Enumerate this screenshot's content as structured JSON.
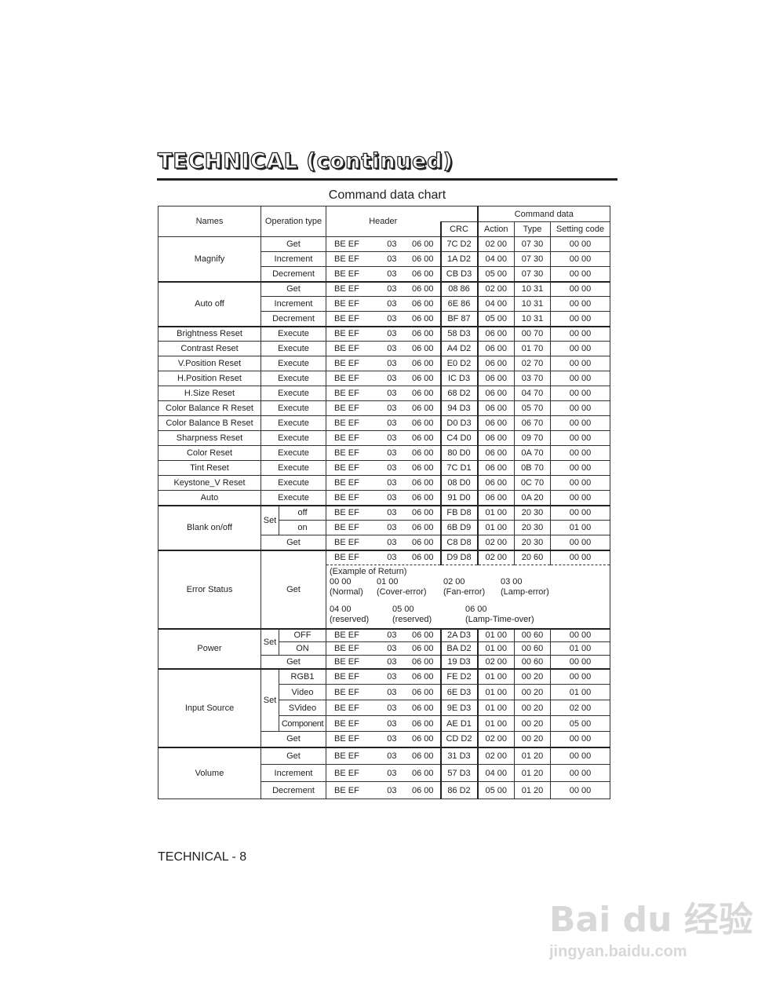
{
  "page": {
    "title": "TECHNICAL (continued)",
    "subtitle": "Command data chart",
    "footer": "TECHNICAL - 8",
    "watermark": {
      "brand": "Bai du 经验",
      "url": "jingyan.baidu.com"
    }
  },
  "columns": {
    "names": "Names",
    "operation_type": "Operation type",
    "header": "Header",
    "command_data": "Command data",
    "crc": "CRC",
    "action": "Action",
    "type": "Type",
    "setting_code": "Setting code"
  },
  "groups": [
    {
      "name": "Magnify",
      "rows": [
        {
          "op": "Get",
          "header": [
            "BE EF",
            "03",
            "06 00"
          ],
          "crc": "7C D2",
          "action": "02 00",
          "type": "07 30",
          "setting": "00 00"
        },
        {
          "op": "Increment",
          "header": [
            "BE EF",
            "03",
            "06 00"
          ],
          "crc": "1A D2",
          "action": "04 00",
          "type": "07 30",
          "setting": "00 00"
        },
        {
          "op": "Decrement",
          "header": [
            "BE EF",
            "03",
            "06 00"
          ],
          "crc": "CB D3",
          "action": "05 00",
          "type": "07 30",
          "setting": "00 00"
        }
      ]
    },
    {
      "name": "Auto off",
      "rows": [
        {
          "op": "Get",
          "header": [
            "BE EF",
            "03",
            "06 00"
          ],
          "crc": "08 86",
          "action": "02 00",
          "type": "10 31",
          "setting": "00 00"
        },
        {
          "op": "Increment",
          "header": [
            "BE EF",
            "03",
            "06 00"
          ],
          "crc": "6E 86",
          "action": "04 00",
          "type": "10 31",
          "setting": "00 00"
        },
        {
          "op": "Decrement",
          "header": [
            "BE EF",
            "03",
            "06 00"
          ],
          "crc": "BF 87",
          "action": "05 00",
          "type": "10 31",
          "setting": "00 00"
        }
      ]
    },
    {
      "name": "Brightness Reset",
      "rows": [
        {
          "op": "Execute",
          "header": [
            "BE EF",
            "03",
            "06 00"
          ],
          "crc": "58 D3",
          "action": "06 00",
          "type": "00 70",
          "setting": "00 00"
        }
      ]
    },
    {
      "name": "Contrast Reset",
      "rows": [
        {
          "op": "Execute",
          "header": [
            "BE EF",
            "03",
            "06 00"
          ],
          "crc": "A4 D2",
          "action": "06 00",
          "type": "01 70",
          "setting": "00 00"
        }
      ]
    },
    {
      "name": "V.Position Reset",
      "rows": [
        {
          "op": "Execute",
          "header": [
            "BE EF",
            "03",
            "06 00"
          ],
          "crc": "E0 D2",
          "action": "06 00",
          "type": "02 70",
          "setting": "00 00"
        }
      ]
    },
    {
      "name": "H.Position Reset",
      "rows": [
        {
          "op": "Execute",
          "header": [
            "BE EF",
            "03",
            "06 00"
          ],
          "crc": "IC D3",
          "action": "06 00",
          "type": "03 70",
          "setting": "00 00"
        }
      ]
    },
    {
      "name": "H.Size Reset",
      "rows": [
        {
          "op": "Execute",
          "header": [
            "BE EF",
            "03",
            "06 00"
          ],
          "crc": "68 D2",
          "action": "06 00",
          "type": "04 70",
          "setting": "00 00"
        }
      ]
    },
    {
      "name": "Color Balance R Reset",
      "rows": [
        {
          "op": "Execute",
          "header": [
            "BE EF",
            "03",
            "06 00"
          ],
          "crc": "94 D3",
          "action": "06 00",
          "type": "05 70",
          "setting": "00 00"
        }
      ]
    },
    {
      "name": "Color Balance B Reset",
      "rows": [
        {
          "op": "Execute",
          "header": [
            "BE EF",
            "03",
            "06 00"
          ],
          "crc": "D0 D3",
          "action": "06 00",
          "type": "06 70",
          "setting": "00 00"
        }
      ]
    },
    {
      "name": "Sharpness Reset",
      "rows": [
        {
          "op": "Execute",
          "header": [
            "BE EF",
            "03",
            "06 00"
          ],
          "crc": "C4 D0",
          "action": "06 00",
          "type": "09 70",
          "setting": "00 00"
        }
      ]
    },
    {
      "name": "Color Reset",
      "rows": [
        {
          "op": "Execute",
          "header": [
            "BE EF",
            "03",
            "06 00"
          ],
          "crc": "80 D0",
          "action": "06 00",
          "type": "0A 70",
          "setting": "00 00"
        }
      ]
    },
    {
      "name": "Tint Reset",
      "rows": [
        {
          "op": "Execute",
          "header": [
            "BE EF",
            "03",
            "06 00"
          ],
          "crc": "7C D1",
          "action": "06 00",
          "type": "0B 70",
          "setting": "00 00"
        }
      ]
    },
    {
      "name": "Keystone_V  Reset",
      "rows": [
        {
          "op": "Execute",
          "header": [
            "BE EF",
            "03",
            "06 00"
          ],
          "crc": "08 D0",
          "action": "06 00",
          "type": "0C 70",
          "setting": "00 00"
        }
      ]
    },
    {
      "name": "Auto",
      "rows": [
        {
          "op": "Execute",
          "header": [
            "BE EF",
            "03",
            "06 00"
          ],
          "crc": "91 D0",
          "action": "06 00",
          "type": "0A 20",
          "setting": "00 00"
        }
      ]
    },
    {
      "name": "Blank on/off",
      "rows": [
        {
          "set": "Set",
          "op": "off",
          "header": [
            "BE EF",
            "03",
            "06 00"
          ],
          "crc": "FB D8",
          "action": "01 00",
          "type": "20 30",
          "setting": "00 00"
        },
        {
          "set": "Set",
          "op": "on",
          "header": [
            "BE EF",
            "03",
            "06 00"
          ],
          "crc": "6B D9",
          "action": "01 00",
          "type": "20 30",
          "setting": "01 00"
        },
        {
          "op": "Get",
          "header": [
            "BE EF",
            "03",
            "06 00"
          ],
          "crc": "C8 D8",
          "action": "02 00",
          "type": "20 30",
          "setting": "00 00"
        }
      ]
    },
    {
      "name": "Error Status",
      "rows": [
        {
          "op": "Get",
          "header": [
            "BE EF",
            "03",
            "06 00"
          ],
          "crc": "D9 D8",
          "action": "02 00",
          "type": "20 60",
          "setting": "00 00"
        }
      ],
      "return_example": {
        "label": "(Example of Return)",
        "line1": [
          {
            "code": "00 00",
            "desc": "(Normal)"
          },
          {
            "code": "01 00",
            "desc": "(Cover-error)"
          },
          {
            "code": "02 00",
            "desc": "(Fan-error)"
          },
          {
            "code": "03 00",
            "desc": "(Lamp-error)"
          }
        ],
        "line2": [
          {
            "code": "04 00",
            "desc": "(reserved)"
          },
          {
            "code": "05 00",
            "desc": "(reserved)"
          },
          {
            "code": "06 00",
            "desc": "(Lamp-Time-over)"
          }
        ]
      }
    },
    {
      "name": "Power",
      "rows": [
        {
          "set": "Set",
          "op": "OFF",
          "header": [
            "BE EF",
            "03",
            "06 00"
          ],
          "crc": "2A D3",
          "action": "01 00",
          "type": "00 60",
          "setting": "00 00"
        },
        {
          "set": "Set",
          "op": "ON",
          "header": [
            "BE EF",
            "03",
            "06 00"
          ],
          "crc": "BA D2",
          "action": "01 00",
          "type": "00 60",
          "setting": "01 00"
        },
        {
          "op": "Get",
          "header": [
            "BE EF",
            "03",
            "06 00"
          ],
          "crc": "19 D3",
          "action": "02 00",
          "type": "00 60",
          "setting": "00 00"
        }
      ]
    },
    {
      "name": "Input Source",
      "rows": [
        {
          "set": "Set",
          "op": "RGB1",
          "header": [
            "BE EF",
            "03",
            "06 00"
          ],
          "crc": "FE D2",
          "action": "01 00",
          "type": "00 20",
          "setting": "00 00"
        },
        {
          "set": "Set",
          "op": "Video",
          "header": [
            "BE EF",
            "03",
            "06 00"
          ],
          "crc": "6E D3",
          "action": "01 00",
          "type": "00 20",
          "setting": "01 00"
        },
        {
          "set": "Set",
          "op": "SVideo",
          "header": [
            "BE EF",
            "03",
            "06 00"
          ],
          "crc": "9E D3",
          "action": "01 00",
          "type": "00 20",
          "setting": "02 00"
        },
        {
          "set": "Set",
          "op": "Component",
          "header": [
            "BE EF",
            "03",
            "06 00"
          ],
          "crc": "AE D1",
          "action": "01 00",
          "type": "00 20",
          "setting": "05 00"
        },
        {
          "op": "Get",
          "header": [
            "BE EF",
            "03",
            "06 00"
          ],
          "crc": "CD D2",
          "action": "02 00",
          "type": "00 20",
          "setting": "00 00"
        }
      ]
    },
    {
      "name": "Volume",
      "rows": [
        {
          "op": "Get",
          "header": [
            "BE EF",
            "03",
            "06 00"
          ],
          "crc": "31 D3",
          "action": "02 00",
          "type": "01 20",
          "setting": "00 00"
        },
        {
          "op": "Increment",
          "header": [
            "BE EF",
            "03",
            "06 00"
          ],
          "crc": "57 D3",
          "action": "04 00",
          "type": "01 20",
          "setting": "00 00"
        },
        {
          "op": "Decrement",
          "header": [
            "BE EF",
            "03",
            "06 00"
          ],
          "crc": "86 D2",
          "action": "05 00",
          "type": "01 20",
          "setting": "00 00"
        }
      ]
    }
  ]
}
